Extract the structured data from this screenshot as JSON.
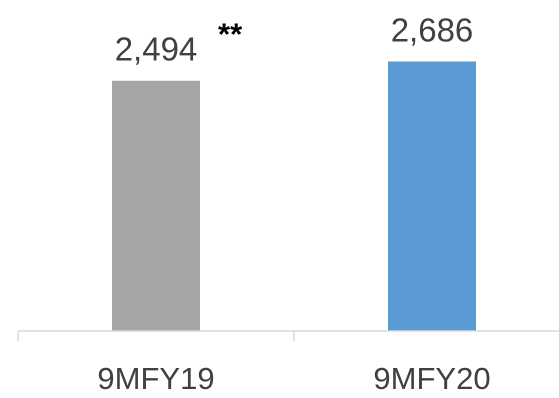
{
  "chart_data": {
    "type": "bar",
    "title": "",
    "xlabel": "",
    "ylabel": "",
    "categories": [
      "9MFY19",
      "9MFY20"
    ],
    "values": [
      2494,
      2686
    ],
    "value_labels": [
      "2,494",
      "2,686"
    ],
    "annotations": [
      {
        "category": "9MFY19",
        "text": "**"
      }
    ],
    "colors": [
      "#a6a6a6",
      "#5b9bd5"
    ],
    "ylim": [
      0,
      2900
    ],
    "grid": false,
    "legend": "none"
  }
}
